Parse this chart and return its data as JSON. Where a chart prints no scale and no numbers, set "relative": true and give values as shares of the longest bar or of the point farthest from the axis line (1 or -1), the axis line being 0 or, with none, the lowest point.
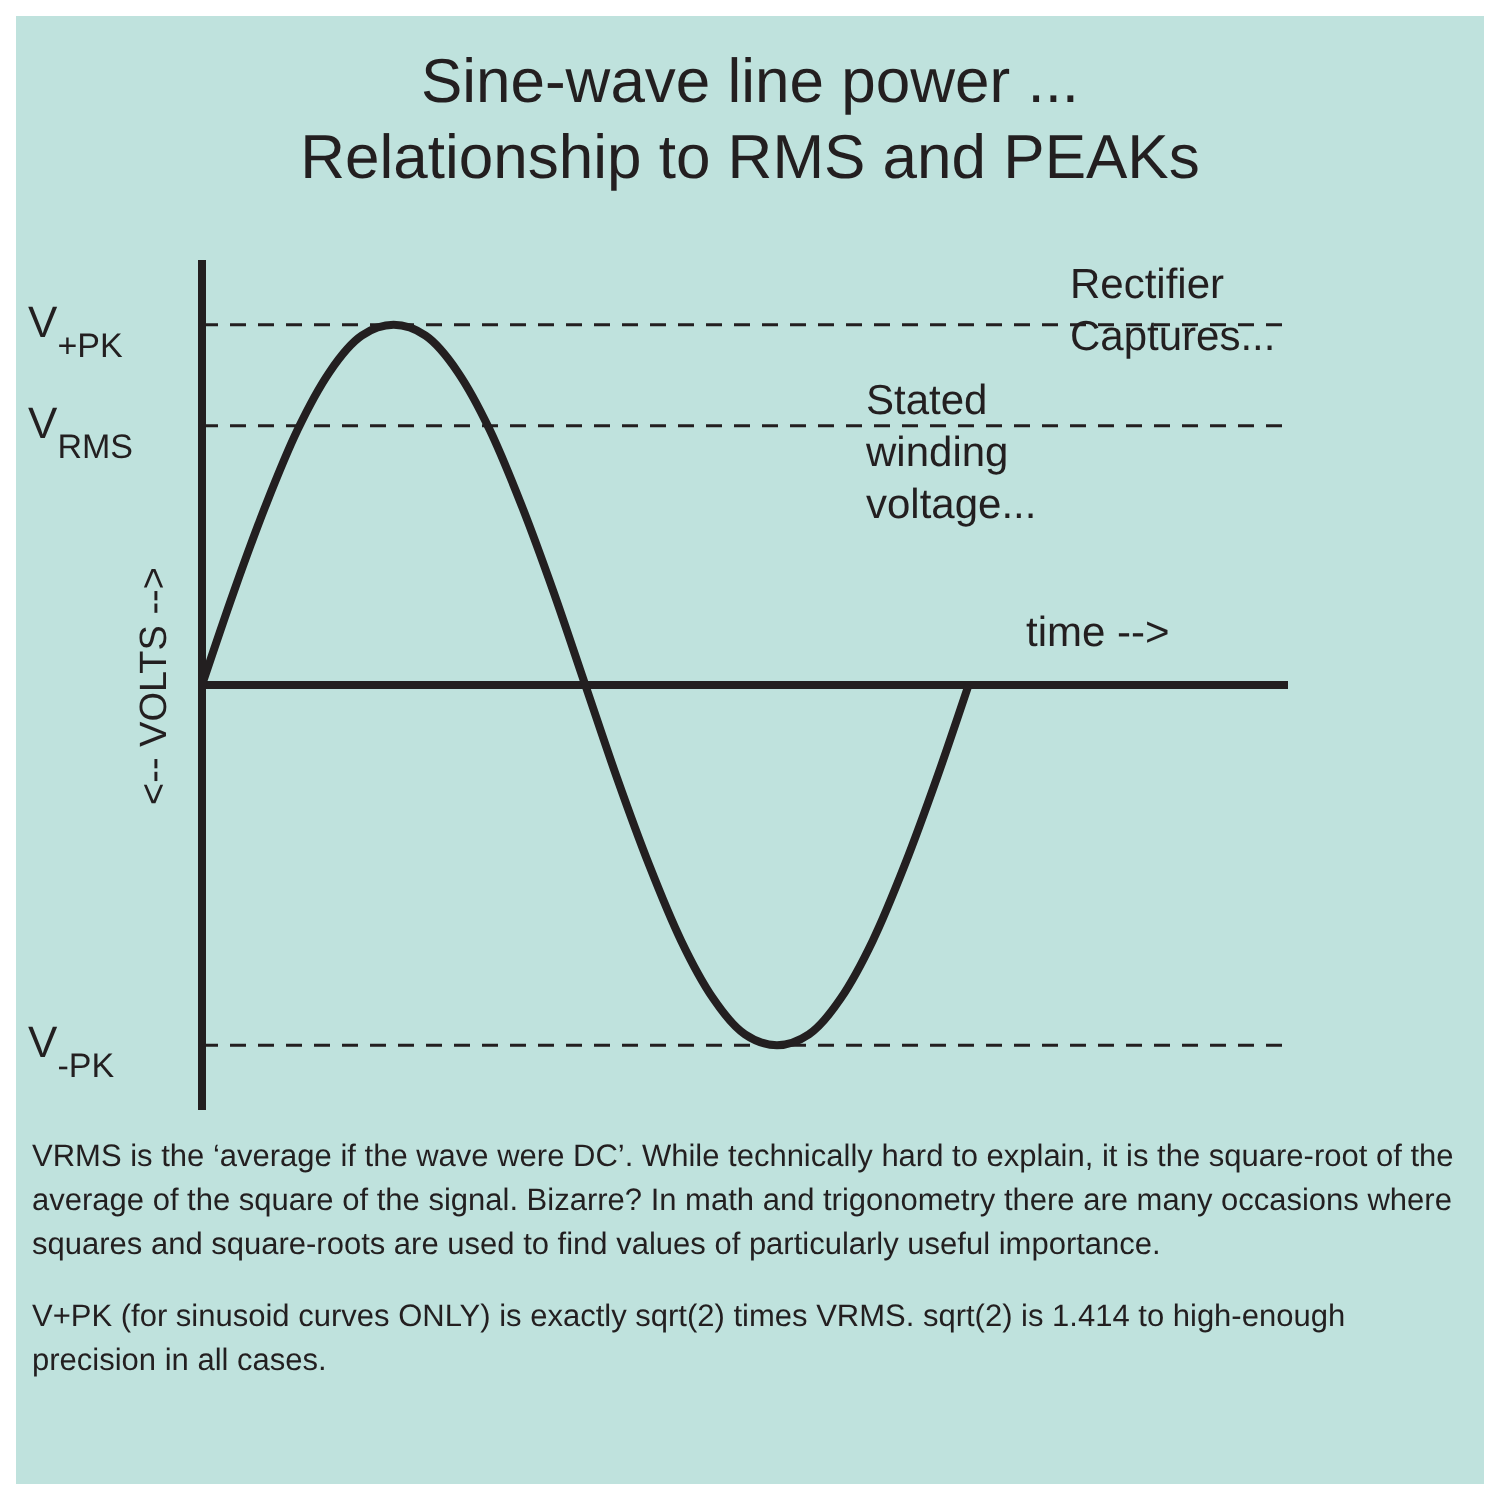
{
  "chart_data": {
    "type": "line",
    "title": "Sine-wave  line power ...\nRelationship to RMS and PEAKs",
    "xlabel": "time -->",
    "ylabel": "<-- VOLTS -->",
    "relative": true,
    "categories": [
      null,
      null,
      null,
      null,
      null,
      null,
      null,
      null,
      null,
      null,
      null,
      null,
      null,
      null,
      null,
      null,
      null,
      null,
      null,
      null,
      null,
      null,
      null,
      null,
      null,
      null,
      null,
      null,
      null,
      null,
      null,
      null,
      null,
      null,
      null
    ],
    "series": [
      {
        "color": "#231f20",
        "values": [
          0,
          0.26,
          0.5,
          0.71,
          0.87,
          0.97,
          1,
          0.97,
          0.87,
          0.71,
          0.5,
          0.26,
          0,
          -0.26,
          -0.5,
          -0.71,
          -0.87,
          -0.97,
          -1,
          -0.97,
          -0.87,
          -0.71,
          -0.5,
          -0.26,
          0,
          null,
          null,
          null,
          null,
          null,
          null,
          null,
          null,
          null,
          null
        ]
      }
    ],
    "ref_lines": [
      {
        "axis": "y",
        "value": 1,
        "label": "V$_{+PK}$",
        "color": "#231f20",
        "line_style": "dashed"
      },
      {
        "axis": "y",
        "value": 0.72,
        "label": "V$_{RMS}$",
        "color": "#231f20",
        "line_style": "dashed"
      },
      {
        "axis": "y",
        "value": -1,
        "label": "V$_{-PK}$",
        "color": "#231f20",
        "line_style": "dashed"
      }
    ],
    "annotations": [
      "Rectifier Captures...",
      "Stated winding voltage...",
      "VRMS is the ‘average if the wave were DC’.  While technically hard to explain, it is the square-root of the average of the square of the signal.  Bizarre?  In math and trigonometry there are many occasions where squares and square-roots are used to find values of particularly useful importance.",
      "V+PK (for sinusoid curves ONLY) is exactly sqrt(2) times VRMS.  sqrt(2) is 1.414 to high-enough precision in all cases."
    ]
  }
}
